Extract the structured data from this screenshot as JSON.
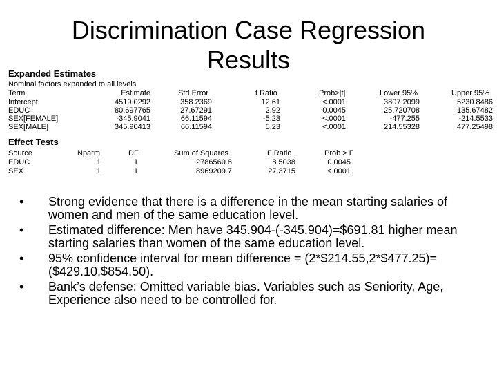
{
  "slide": {
    "title_line1": "Discrimination Case Regression",
    "title_line2": "Results"
  },
  "expanded": {
    "heading": "Expanded Estimates",
    "note": "Nominal factors expanded to all levels",
    "columns": [
      "Term",
      "Estimate",
      "Std Error",
      "t Ratio",
      "Prob>|t|",
      "Lower 95%",
      "Upper 95%"
    ],
    "rows": [
      [
        "Intercept",
        "4519.0292",
        "358.2369",
        "12.61",
        "<.0001",
        "3807.2099",
        "5230.8486"
      ],
      [
        "EDUC",
        "80.697765",
        "27.67291",
        "2.92",
        "0.0045",
        "25.720708",
        "135.67482"
      ],
      [
        "SEX[FEMALE]",
        "-345.9041",
        "66.11594",
        "-5.23",
        "<.0001",
        "-477.255",
        "-214.5533"
      ],
      [
        "SEX[MALE]",
        "345.90413",
        "66.11594",
        "5.23",
        "<.0001",
        "214.55328",
        "477.25498"
      ]
    ]
  },
  "effects": {
    "heading": "Effect Tests",
    "columns": [
      "Source",
      "Nparm",
      "DF",
      "Sum of Squares",
      "F Ratio",
      "Prob > F"
    ],
    "rows": [
      [
        "EDUC",
        "1",
        "1",
        "2786560.8",
        "8.5038",
        "0.0045"
      ],
      [
        "SEX",
        "1",
        "1",
        "8969209.7",
        "27.3715",
        "<.0001"
      ]
    ]
  },
  "bullets": [
    "Strong evidence that there is a difference in the mean starting salaries of women and men of the same education level.",
    "Estimated difference: Men have  345.904-(-345.904)=$691.81 higher mean starting salaries than women of the same education level.",
    "95% confidence interval for mean difference = (2*$214.55,2*$477.25)=($429.10,$854.50).",
    "Bank’s defense: Omitted variable bias.  Variables such as Seniority, Age, Experience also need to be controlled for."
  ],
  "bullet_glyph": "•"
}
